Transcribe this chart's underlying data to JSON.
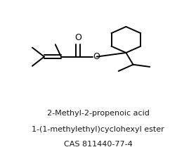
{
  "title_line1": "2-Methyl-2-propenoic acid",
  "title_line2": "1-(1-methylethyl)cyclohexyl ester",
  "title_line3": "CAS 811440-77-4",
  "bg_color": "#ffffff",
  "line_color": "#000000",
  "text_color": "#1a1a1a",
  "font_size_title": 8.0,
  "lw": 1.4
}
